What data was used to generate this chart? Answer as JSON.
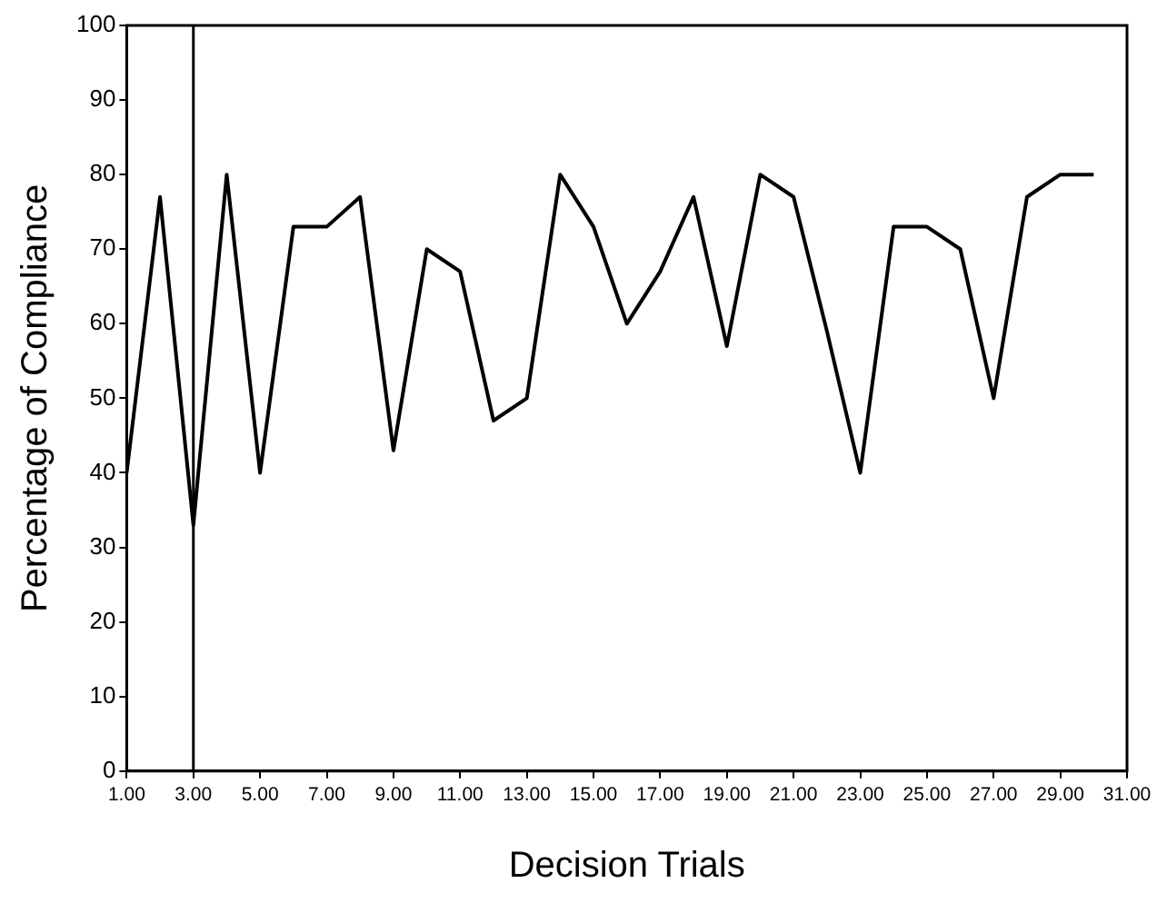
{
  "chart_data": {
    "type": "line",
    "xlabel": "Decision Trials",
    "ylabel": "Percentage of Compliance",
    "x": [
      1,
      2,
      3,
      4,
      5,
      6,
      7,
      8,
      9,
      10,
      11,
      12,
      13,
      14,
      15,
      16,
      17,
      18,
      19,
      20,
      21,
      22,
      23,
      24,
      25,
      26,
      27,
      28,
      29,
      30
    ],
    "series": [
      {
        "color": "#000000",
        "values": [
          40,
          77,
          33,
          80,
          40,
          73,
          73,
          77,
          43,
          70,
          67,
          47,
          50,
          80,
          73,
          60,
          67,
          77,
          57,
          80,
          77,
          59,
          40,
          73,
          73,
          70,
          50,
          77,
          80,
          80
        ]
      }
    ],
    "xlim": [
      1,
      31
    ],
    "xticks": [
      {
        "value": 1,
        "label": "1.00"
      },
      {
        "value": 3,
        "label": "3.00"
      },
      {
        "value": 5,
        "label": "5.00"
      },
      {
        "value": 7,
        "label": "7.00"
      },
      {
        "value": 9,
        "label": "9.00"
      },
      {
        "value": 11,
        "label": "11.00"
      },
      {
        "value": 13,
        "label": "13.00"
      },
      {
        "value": 15,
        "label": "15.00"
      },
      {
        "value": 17,
        "label": "17.00"
      },
      {
        "value": 19,
        "label": "19.00"
      },
      {
        "value": 21,
        "label": "21.00"
      },
      {
        "value": 23,
        "label": "23.00"
      },
      {
        "value": 25,
        "label": "25.00"
      },
      {
        "value": 27,
        "label": "27.00"
      },
      {
        "value": 29,
        "label": "29.00"
      },
      {
        "value": 31,
        "label": "31.00"
      }
    ],
    "ylim": [
      0,
      100
    ],
    "yticks": [
      0,
      10,
      20,
      30,
      40,
      50,
      60,
      70,
      80,
      90,
      100
    ],
    "ref_lines": [
      {
        "axis": "x",
        "value": 3,
        "color": "#000000"
      }
    ],
    "grid": false,
    "legend": false,
    "marker": "none",
    "line_style": "solid"
  }
}
